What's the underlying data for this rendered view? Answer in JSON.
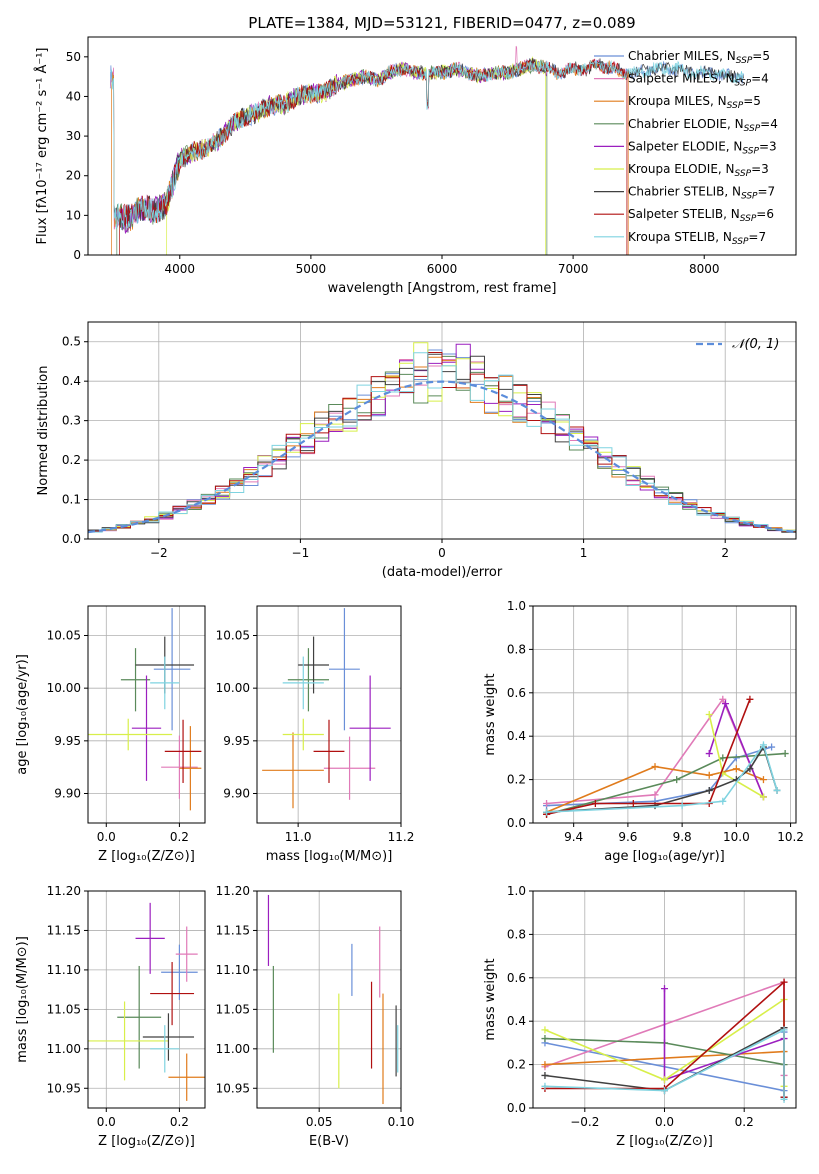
{
  "colors": {
    "chabrier_miles": "#6a8fd8",
    "salpeter_miles": "#e07ab8",
    "kroupa_miles": "#e07b1c",
    "chabrier_elodie": "#5a8a5a",
    "salpeter_elodie": "#9b1fbf",
    "kroupa_elodie": "#d8ef4a",
    "chabrier_stelib": "#404040",
    "salpeter_stelib": "#b01010",
    "kroupa_stelib": "#7fd3e0",
    "normal_curve": "#5b8ddb"
  },
  "chart_data": [
    {
      "id": "spectrum",
      "type": "line",
      "title": "PLATE=1384, MJD=53121, FIBERID=0477, z=0.089",
      "xlabel": "wavelength [Angstrom, rest frame]",
      "ylabel": "Flux [fλ10⁻¹⁷ erg cm⁻² s⁻¹ Å⁻¹]",
      "xlim": [
        3300,
        8700
      ],
      "ylim": [
        0,
        55
      ],
      "xticks": [
        "4000",
        "5000",
        "6000",
        "7000",
        "8000"
      ],
      "yticks": [
        "0",
        "10",
        "20",
        "30",
        "40",
        "50"
      ],
      "legend_position": "top-right",
      "legend": [
        {
          "label": "Chabrier MILES, N",
          "sub": "SSP",
          "n": "=5",
          "color_key": "chabrier_miles"
        },
        {
          "label": "Salpeter MILES, N",
          "sub": "SSP",
          "n": "=4",
          "color_key": "salpeter_miles"
        },
        {
          "label": "Kroupa MILES, N",
          "sub": "SSP",
          "n": "=5",
          "color_key": "kroupa_miles"
        },
        {
          "label": "Chabrier ELODIE, N",
          "sub": "SSP",
          "n": "=4",
          "color_key": "chabrier_elodie"
        },
        {
          "label": "Salpeter ELODIE, N",
          "sub": "SSP",
          "n": "=3",
          "color_key": "salpeter_elodie"
        },
        {
          "label": "Kroupa ELODIE, N",
          "sub": "SSP",
          "n": "=3",
          "color_key": "kroupa_elodie"
        },
        {
          "label": "Chabrier STELIB, N",
          "sub": "SSP",
          "n": "=7",
          "color_key": "chabrier_stelib"
        },
        {
          "label": "Salpeter STELIB, N",
          "sub": "SSP",
          "n": "=6",
          "color_key": "salpeter_stelib"
        },
        {
          "label": "Kroupa STELIB, N",
          "sub": "SSP",
          "n": "=7",
          "color_key": "kroupa_stelib"
        }
      ],
      "envelope": {
        "x": [
          3500,
          3600,
          3700,
          3800,
          3900,
          4000,
          4100,
          4200,
          4300,
          4400,
          4500,
          4600,
          4700,
          4800,
          4900,
          5000,
          5100,
          5200,
          5300,
          5400,
          5500,
          5600,
          5700,
          5800,
          5900,
          6000,
          6100,
          6200,
          6300,
          6400,
          6500,
          6600,
          6700,
          6800,
          6900,
          7000,
          7100,
          7200,
          7300,
          7400,
          7500,
          7600,
          7700,
          7800,
          7900,
          8000,
          8100,
          8200,
          8300
        ],
        "y": [
          10,
          9,
          12,
          11,
          13,
          24,
          26,
          27,
          29,
          33,
          35,
          36,
          38,
          38,
          40,
          41,
          41,
          43,
          44,
          45,
          44,
          46,
          47,
          46,
          46,
          46,
          47,
          46,
          45,
          46,
          46,
          47,
          48,
          47,
          46,
          47,
          47,
          48,
          47,
          46,
          46,
          47,
          47,
          47,
          46,
          46,
          46,
          45,
          45
        ]
      }
    },
    {
      "id": "residuals",
      "type": "area",
      "xlabel": "(data-model)/error",
      "ylabel": "Normed distribution",
      "xlim": [
        -2.5,
        2.5
      ],
      "ylim": [
        0,
        0.55
      ],
      "xticks": [
        "−2",
        "−1",
        "0",
        "1",
        "2"
      ],
      "yticks": [
        "0.0",
        "0.1",
        "0.2",
        "0.3",
        "0.4",
        "0.5"
      ],
      "grid": true,
      "legend_position": "top-right",
      "legend": [
        {
          "label": "𝒩(0, 1)",
          "color_key": "normal_curve"
        }
      ],
      "bin_width": 0.1
    },
    {
      "id": "age_vs_Z",
      "type": "scatter",
      "xlabel": "Z [log₁₀(Z/Z⊙)]",
      "ylabel": "age  [log₁₀(age/yr)]",
      "xlim": [
        -0.05,
        0.27
      ],
      "ylim": [
        9.872,
        10.078
      ],
      "xticks": [
        "0.0",
        "0.2"
      ],
      "yticks": [
        "9.90",
        "9.95",
        "10.00",
        "10.05"
      ],
      "grid": true,
      "points": [
        {
          "key": "chabrier_miles",
          "x": 0.18,
          "y": 10.018,
          "xerr": 0.05,
          "yerr": 0.058
        },
        {
          "key": "salpeter_miles",
          "x": 0.2,
          "y": 9.925,
          "xerr": 0.05,
          "yerr": 0.03
        },
        {
          "key": "kroupa_miles",
          "x": 0.23,
          "y": 9.924,
          "xerr": 0.03,
          "yerr": 0.04
        },
        {
          "key": "chabrier_elodie",
          "x": 0.08,
          "y": 10.008,
          "xerr": 0.04,
          "yerr": 0.03
        },
        {
          "key": "salpeter_elodie",
          "x": 0.11,
          "y": 9.962,
          "xerr": 0.04,
          "yerr": 0.05
        },
        {
          "key": "kroupa_elodie",
          "x": 0.06,
          "y": 9.956,
          "xerr": 0.12,
          "yerr": 0.015
        },
        {
          "key": "chabrier_stelib",
          "x": 0.16,
          "y": 10.022,
          "xerr": 0.08,
          "yerr": 0.027
        },
        {
          "key": "salpeter_stelib",
          "x": 0.21,
          "y": 9.94,
          "xerr": 0.05,
          "yerr": 0.03
        },
        {
          "key": "kroupa_stelib",
          "x": 0.16,
          "y": 10.005,
          "xerr": 0.04,
          "yerr": 0.025
        }
      ]
    },
    {
      "id": "age_vs_mass",
      "type": "scatter",
      "xlabel": "mass [log₁₀(M/M⊙)]",
      "ylabel": "",
      "xlim": [
        10.92,
        11.2
      ],
      "ylim": [
        9.872,
        10.078
      ],
      "xticks": [
        "11.0",
        "11.2"
      ],
      "yticks": [
        "9.90",
        "9.95",
        "10.00",
        "10.05"
      ],
      "grid": true,
      "points": [
        {
          "key": "chabrier_miles",
          "x": 11.09,
          "y": 10.018,
          "xerr": 0.03,
          "yerr": 0.058
        },
        {
          "key": "salpeter_miles",
          "x": 11.1,
          "y": 9.924,
          "xerr": 0.05,
          "yerr": 0.03
        },
        {
          "key": "kroupa_miles",
          "x": 10.99,
          "y": 9.922,
          "xerr": 0.06,
          "yerr": 0.036
        },
        {
          "key": "chabrier_elodie",
          "x": 11.02,
          "y": 10.008,
          "xerr": 0.04,
          "yerr": 0.03
        },
        {
          "key": "salpeter_elodie",
          "x": 11.14,
          "y": 9.962,
          "xerr": 0.04,
          "yerr": 0.05
        },
        {
          "key": "kroupa_elodie",
          "x": 11.01,
          "y": 9.956,
          "xerr": 0.04,
          "yerr": 0.015
        },
        {
          "key": "chabrier_stelib",
          "x": 11.03,
          "y": 10.022,
          "xerr": 0.03,
          "yerr": 0.027
        },
        {
          "key": "salpeter_stelib",
          "x": 11.06,
          "y": 9.94,
          "xerr": 0.03,
          "yerr": 0.03
        },
        {
          "key": "kroupa_stelib",
          "x": 11.01,
          "y": 10.005,
          "xerr": 0.04,
          "yerr": 0.025
        }
      ]
    },
    {
      "id": "mass_weight_vs_age",
      "type": "line",
      "xlabel": "age  [log₁₀(age/yr)]",
      "ylabel": "mass weight",
      "xlim": [
        9.25,
        10.22
      ],
      "ylim": [
        0,
        1.0
      ],
      "xticks": [
        "9.4",
        "9.6",
        "9.8",
        "10.0",
        "10.2"
      ],
      "yticks": [
        "0.0",
        "0.2",
        "0.4",
        "0.6",
        "0.8",
        "1.0"
      ],
      "grid": true,
      "series": [
        {
          "key": "chabrier_miles",
          "x": [
            9.3,
            9.7,
            9.9,
            10.0,
            10.13
          ],
          "y": [
            0.08,
            0.1,
            0.15,
            0.3,
            0.35
          ]
        },
        {
          "key": "salpeter_miles",
          "x": [
            9.3,
            9.7,
            9.95,
            10.1
          ],
          "y": [
            0.09,
            0.13,
            0.57,
            0.12
          ]
        },
        {
          "key": "kroupa_miles",
          "x": [
            9.3,
            9.7,
            9.9,
            10.0,
            10.1
          ],
          "y": [
            0.05,
            0.26,
            0.22,
            0.25,
            0.2
          ]
        },
        {
          "key": "chabrier_elodie",
          "x": [
            9.3,
            9.78,
            9.95,
            10.18
          ],
          "y": [
            0.04,
            0.2,
            0.3,
            0.32
          ]
        },
        {
          "key": "salpeter_elodie",
          "x": [
            9.9,
            9.96,
            10.1
          ],
          "y": [
            0.32,
            0.55,
            0.12
          ]
        },
        {
          "key": "kroupa_elodie",
          "x": [
            9.9,
            9.95,
            10.1
          ],
          "y": [
            0.5,
            0.23,
            0.12
          ]
        },
        {
          "key": "chabrier_stelib",
          "x": [
            9.3,
            9.7,
            9.9,
            10.0,
            10.05,
            10.1,
            10.15
          ],
          "y": [
            0.05,
            0.08,
            0.15,
            0.2,
            0.25,
            0.35,
            0.15
          ]
        },
        {
          "key": "salpeter_stelib",
          "x": [
            9.3,
            9.48,
            9.62,
            9.9,
            10.05
          ],
          "y": [
            0.04,
            0.09,
            0.09,
            0.09,
            0.57
          ]
        },
        {
          "key": "kroupa_stelib",
          "x": [
            9.3,
            9.8,
            9.95,
            10.1,
            10.15
          ],
          "y": [
            0.05,
            0.08,
            0.1,
            0.36,
            0.15
          ]
        }
      ]
    },
    {
      "id": "mass_vs_Z",
      "type": "scatter",
      "xlabel": "Z [log₁₀(Z/Z⊙)]",
      "ylabel": "mass [log₁₀(M/M⊙)]",
      "xlim": [
        -0.05,
        0.27
      ],
      "ylim": [
        10.925,
        11.2
      ],
      "xticks": [
        "0.0",
        "0.2"
      ],
      "yticks": [
        "10.95",
        "11.00",
        "11.05",
        "11.10",
        "11.15",
        "11.20"
      ],
      "grid": true,
      "points": [
        {
          "key": "chabrier_miles",
          "x": 0.2,
          "y": 11.097,
          "xerr": 0.05,
          "yerr": 0.035
        },
        {
          "key": "salpeter_miles",
          "x": 0.22,
          "y": 11.12,
          "xerr": 0.03,
          "yerr": 0.035
        },
        {
          "key": "kroupa_miles",
          "x": 0.22,
          "y": 10.964,
          "xerr": 0.05,
          "yerr": 0.03
        },
        {
          "key": "chabrier_elodie",
          "x": 0.09,
          "y": 11.04,
          "xerr": 0.06,
          "yerr": 0.065
        },
        {
          "key": "salpeter_elodie",
          "x": 0.12,
          "y": 11.14,
          "xerr": 0.04,
          "yerr": 0.045
        },
        {
          "key": "kroupa_elodie",
          "x": 0.05,
          "y": 11.01,
          "xerr": 0.12,
          "yerr": 0.05
        },
        {
          "key": "chabrier_stelib",
          "x": 0.17,
          "y": 11.015,
          "xerr": 0.07,
          "yerr": 0.03
        },
        {
          "key": "salpeter_stelib",
          "x": 0.18,
          "y": 11.07,
          "xerr": 0.06,
          "yerr": 0.04
        },
        {
          "key": "kroupa_stelib",
          "x": 0.16,
          "y": 11.0,
          "xerr": 0.04,
          "yerr": 0.03
        }
      ]
    },
    {
      "id": "mass_vs_ebv",
      "type": "scatter",
      "xlabel": "E(B-V)",
      "ylabel": "",
      "xlim": [
        0.012,
        0.1
      ],
      "ylim": [
        10.925,
        11.2
      ],
      "xticks": [
        "0.05",
        "0.10"
      ],
      "yticks": [
        "10.95",
        "11.00",
        "11.05",
        "11.10",
        "11.15",
        "11.20"
      ],
      "grid": true,
      "points": [
        {
          "key": "chabrier_miles",
          "x": 0.07,
          "y": 11.1,
          "xerr": 0,
          "yerr": 0.033
        },
        {
          "key": "salpeter_miles",
          "x": 0.087,
          "y": 11.11,
          "xerr": 0,
          "yerr": 0.045
        },
        {
          "key": "kroupa_miles",
          "x": 0.089,
          "y": 11.0,
          "xerr": 0,
          "yerr": 0.07
        },
        {
          "key": "chabrier_elodie",
          "x": 0.022,
          "y": 11.05,
          "xerr": 0,
          "yerr": 0.055
        },
        {
          "key": "salpeter_elodie",
          "x": 0.019,
          "y": 11.15,
          "xerr": 0,
          "yerr": 0.045
        },
        {
          "key": "kroupa_elodie",
          "x": 0.062,
          "y": 11.01,
          "xerr": 0,
          "yerr": 0.06
        },
        {
          "key": "chabrier_stelib",
          "x": 0.097,
          "y": 11.01,
          "xerr": 0,
          "yerr": 0.045
        },
        {
          "key": "salpeter_stelib",
          "x": 0.082,
          "y": 11.03,
          "xerr": 0,
          "yerr": 0.055
        },
        {
          "key": "kroupa_stelib",
          "x": 0.098,
          "y": 11.0,
          "xerr": 0,
          "yerr": 0.03
        }
      ]
    },
    {
      "id": "mass_weight_vs_Z",
      "type": "line",
      "xlabel": "Z [log₁₀(Z/Z⊙)]",
      "ylabel": "mass weight",
      "xlim": [
        -0.33,
        0.33
      ],
      "ylim": [
        0,
        1.0
      ],
      "xticks": [
        "−0.2",
        "0.0",
        "0.2"
      ],
      "yticks": [
        "0.0",
        "0.2",
        "0.4",
        "0.6",
        "0.8",
        "1.0"
      ],
      "grid": true,
      "series": [
        {
          "key": "chabrier_miles",
          "x": [
            -0.3,
            0.3,
            0.3
          ],
          "y": [
            0.3,
            0.08,
            0.35
          ]
        },
        {
          "key": "salpeter_miles",
          "x": [
            -0.3,
            0.3,
            0.3
          ],
          "y": [
            0.19,
            0.58,
            0.15
          ]
        },
        {
          "key": "kroupa_miles",
          "x": [
            -0.3,
            0.3,
            0.3
          ],
          "y": [
            0.2,
            0.26,
            0.05
          ]
        },
        {
          "key": "chabrier_elodie",
          "x": [
            -0.3,
            0.0,
            0.3,
            0.3
          ],
          "y": [
            0.32,
            0.3,
            0.2,
            0.05
          ]
        },
        {
          "key": "salpeter_elodie",
          "x": [
            0.0,
            0.0,
            0.3,
            0.3
          ],
          "y": [
            0.55,
            0.13,
            0.32,
            0.05
          ]
        },
        {
          "key": "kroupa_elodie",
          "x": [
            -0.3,
            0.0,
            0.3,
            0.3
          ],
          "y": [
            0.36,
            0.13,
            0.5,
            0.1
          ]
        },
        {
          "key": "chabrier_stelib",
          "x": [
            -0.3,
            0.0,
            0.3,
            0.3
          ],
          "y": [
            0.15,
            0.08,
            0.37,
            0.05
          ]
        },
        {
          "key": "salpeter_stelib",
          "x": [
            -0.3,
            0.0,
            0.3,
            0.3
          ],
          "y": [
            0.09,
            0.09,
            0.58,
            0.05
          ]
        },
        {
          "key": "kroupa_stelib",
          "x": [
            -0.3,
            0.0,
            0.3,
            0.3
          ],
          "y": [
            0.1,
            0.08,
            0.36,
            0.04
          ]
        }
      ]
    }
  ]
}
